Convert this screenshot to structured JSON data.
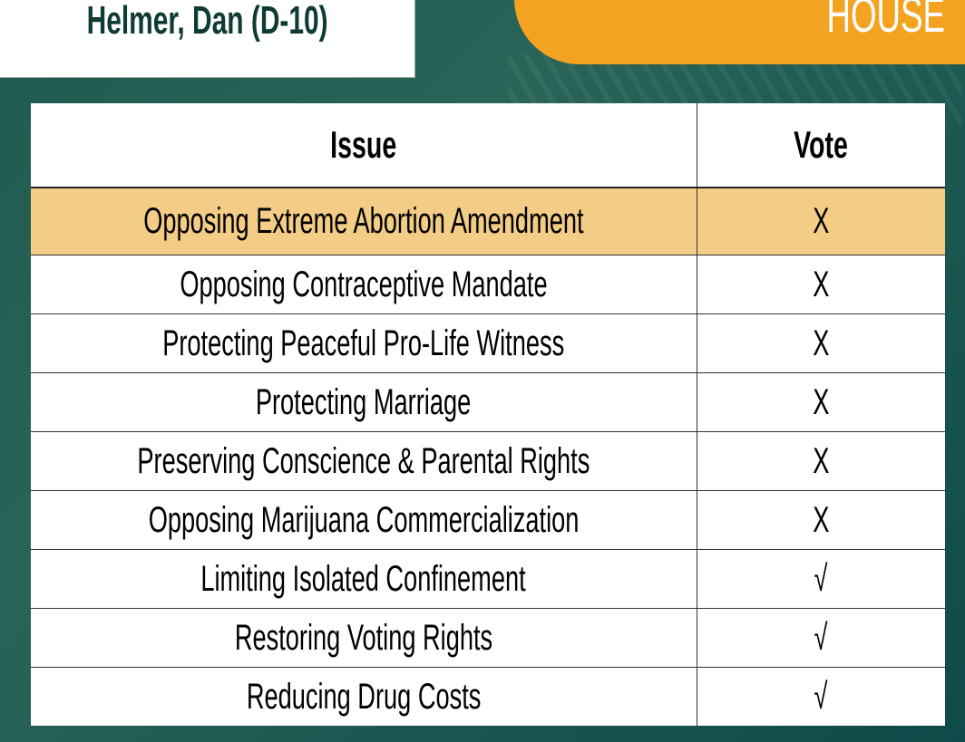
{
  "header": {
    "legislator": "Helmer, Dan (D-10)",
    "chamber": "HOUSE"
  },
  "colors": {
    "teal_bg": "#1f5a50",
    "orange": "#f4a320",
    "highlight": "#f3cd86",
    "name_text": "#0e3b33"
  },
  "table": {
    "columns": [
      "Issue",
      "Vote"
    ],
    "rows": [
      {
        "issue": "Opposing Extreme Abortion Amendment",
        "vote": "X",
        "highlighted": true
      },
      {
        "issue": "Opposing Contraceptive Mandate",
        "vote": "X"
      },
      {
        "issue": "Protecting Peaceful Pro-Life Witness",
        "vote": "X"
      },
      {
        "issue": "Protecting Marriage",
        "vote": "X"
      },
      {
        "issue": "Preserving Conscience & Parental Rights",
        "vote": "X"
      },
      {
        "issue": "Opposing Marijuana Commercialization",
        "vote": "X"
      },
      {
        "issue": "Limiting Isolated Confinement",
        "vote": "√"
      },
      {
        "issue": "Restoring Voting Rights",
        "vote": "√"
      },
      {
        "issue": "Reducing Drug Costs",
        "vote": "√"
      }
    ]
  }
}
